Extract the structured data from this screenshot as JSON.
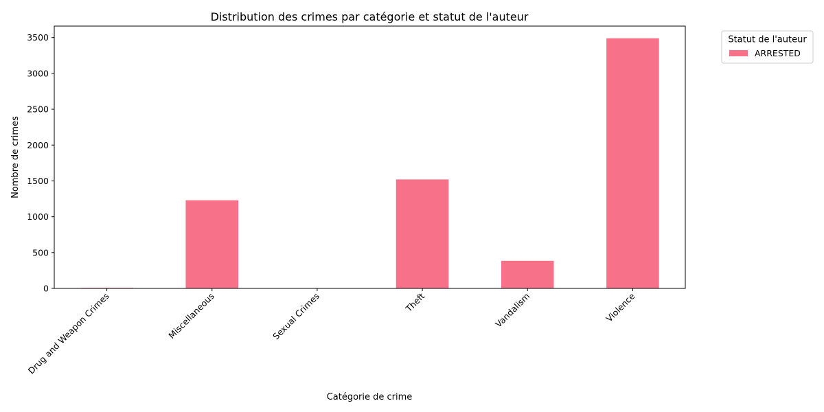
{
  "chart_data": {
    "type": "bar",
    "title": "Distribution des crimes par catégorie et statut de l'auteur",
    "xlabel": "Catégorie de crime",
    "ylabel": "Nombre de crimes",
    "categories": [
      "Drug and Weapon Crimes",
      "Miscellaneous",
      "Sexual Crimes",
      "Theft",
      "Vandalism",
      "Violence"
    ],
    "series": [
      {
        "name": "ARRESTED",
        "color": "#f77189",
        "values": [
          8,
          1230,
          1,
          1520,
          385,
          3490
        ]
      }
    ],
    "ylim": [
      0,
      3660
    ],
    "yticks": [
      0,
      500,
      1000,
      1500,
      2000,
      2500,
      3000,
      3500
    ],
    "grid": false,
    "legend": {
      "title": "Statut de l'auteur",
      "placement": "outside-top-right"
    }
  }
}
